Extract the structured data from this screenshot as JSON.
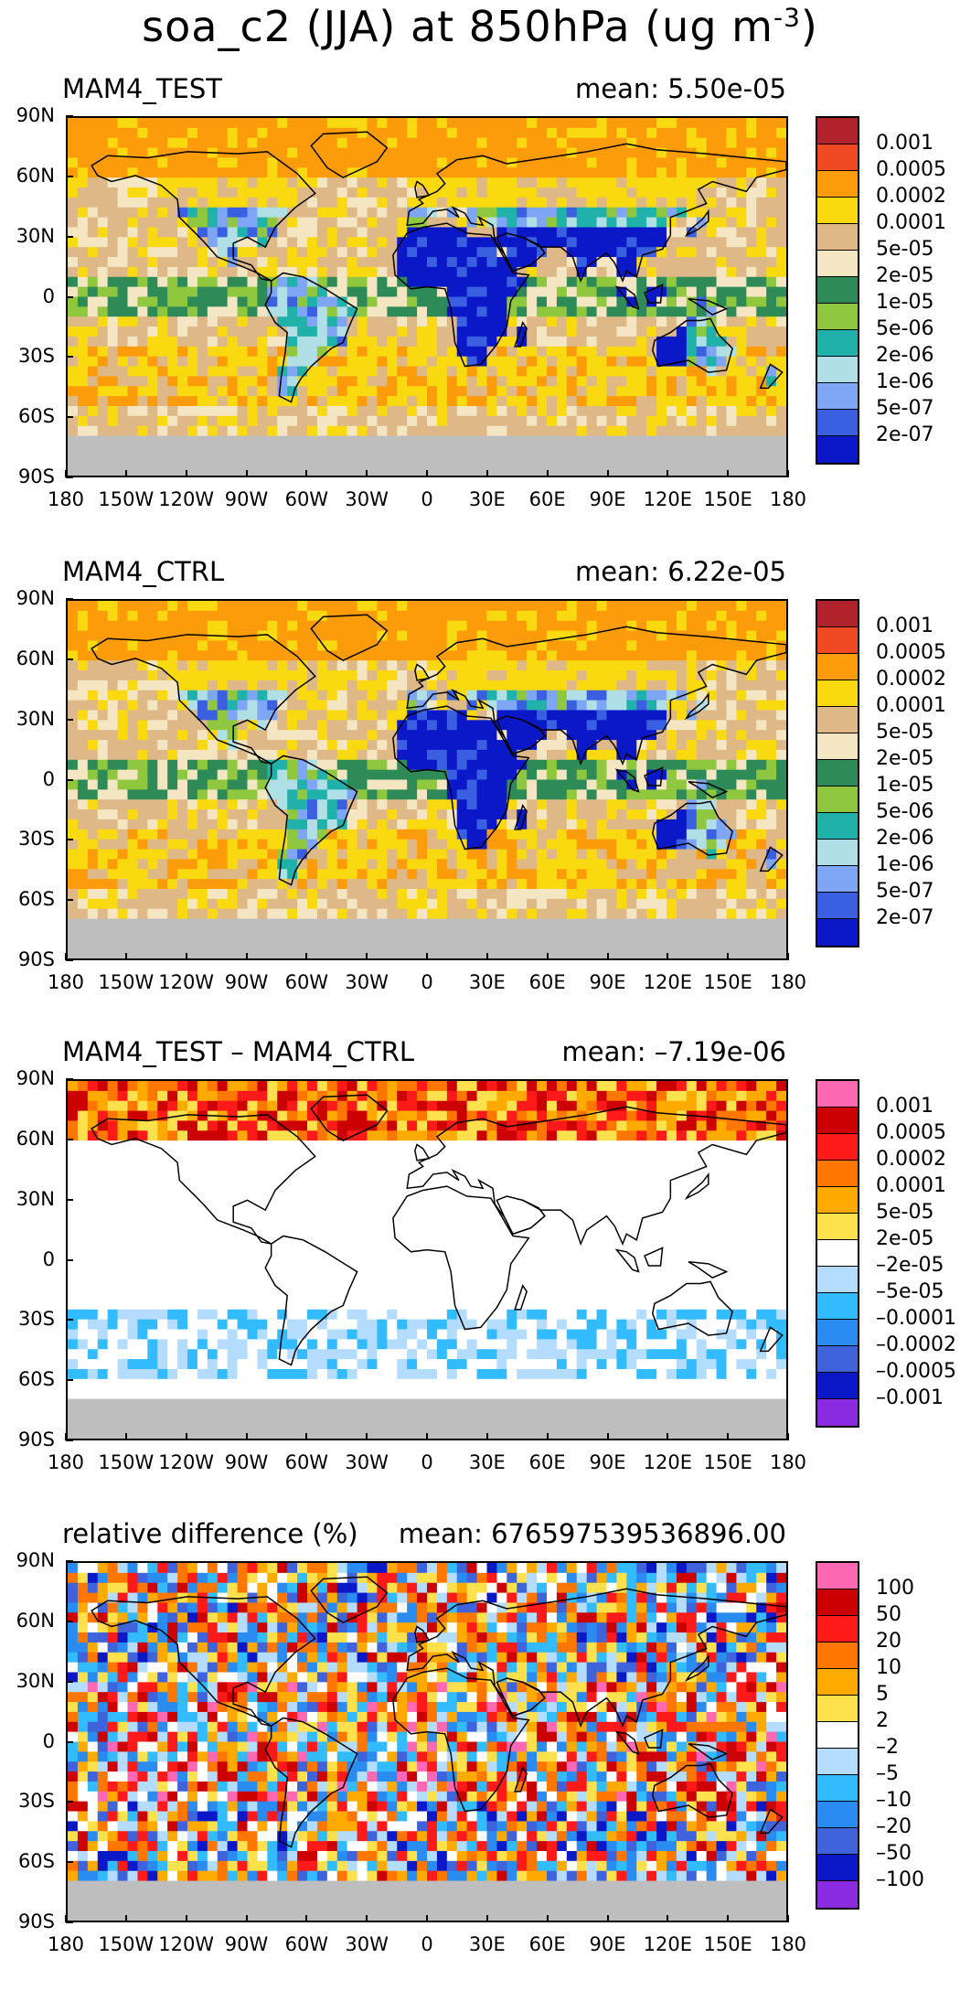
{
  "title_main": "soa_c2 (JJA) at 850hPa (ug m",
  "title_sup": "-3",
  "title_end": ")",
  "lat_labels": [
    "90N",
    "60N",
    "30N",
    "0",
    "30S",
    "60S",
    "90S"
  ],
  "lon_labels": [
    "180",
    "150W",
    "120W",
    "90W",
    "60W",
    "30W",
    "0",
    "30E",
    "60E",
    "90E",
    "120E",
    "150E",
    "180"
  ],
  "panels": [
    {
      "title": "MAM4_TEST",
      "mean": "mean: 5.50e-05",
      "levels": [
        "0.001",
        "0.0005",
        "0.0002",
        "0.0001",
        "5e-05",
        "2e-05",
        "1e-05",
        "5e-06",
        "2e-06",
        "1e-06",
        "5e-07",
        "2e-07"
      ],
      "colors": [
        "#b2222a",
        "#ef4a23",
        "#fd9c0a",
        "#f9d90f",
        "#deb887",
        "#f5e6c3",
        "#2e8b57",
        "#8fc73e",
        "#20b2aa",
        "#b0e0e6",
        "#7fa6f5",
        "#3a5fe0",
        "#0a18c8"
      ],
      "scheme": "conc"
    },
    {
      "title": "MAM4_CTRL",
      "mean": "mean: 6.22e-05",
      "levels": [
        "0.001",
        "0.0005",
        "0.0002",
        "0.0001",
        "5e-05",
        "2e-05",
        "1e-05",
        "5e-06",
        "2e-06",
        "1e-06",
        "5e-07",
        "2e-07"
      ],
      "colors": [
        "#b2222a",
        "#ef4a23",
        "#fd9c0a",
        "#f9d90f",
        "#deb887",
        "#f5e6c3",
        "#2e8b57",
        "#8fc73e",
        "#20b2aa",
        "#b0e0e6",
        "#7fa6f5",
        "#3a5fe0",
        "#0a18c8"
      ],
      "scheme": "conc"
    },
    {
      "title": "MAM4_TEST – MAM4_CTRL",
      "mean": "mean: –7.19e-06",
      "levels": [
        "0.001",
        "0.0005",
        "0.0002",
        "0.0001",
        "5e-05",
        "2e-05",
        "–2e-05",
        "–5e-05",
        "–0.0001",
        "–0.0002",
        "–0.0005",
        "–0.001"
      ],
      "colors": [
        "#ff69b4",
        "#cc0000",
        "#ff1a1a",
        "#ff7700",
        "#ffaa00",
        "#ffe14d",
        "#ffffff",
        "#b3dcff",
        "#33bbff",
        "#2a8cf0",
        "#3f63db",
        "#0a18c8",
        "#8a2be2"
      ],
      "scheme": "diff"
    },
    {
      "title": "relative difference (%)",
      "mean": "mean: 676597539536896.00",
      "levels": [
        "100",
        "50",
        "20",
        "10",
        "5",
        "2",
        "–2",
        "–5",
        "–10",
        "–20",
        "–50",
        "–100"
      ],
      "colors": [
        "#ff69b4",
        "#cc0000",
        "#ff1a1a",
        "#ff7700",
        "#ffaa00",
        "#ffe14d",
        "#ffffff",
        "#b3dcff",
        "#33bbff",
        "#2a8cf0",
        "#3f63db",
        "#0a18c8",
        "#8a2be2"
      ],
      "scheme": "rel"
    }
  ]
}
